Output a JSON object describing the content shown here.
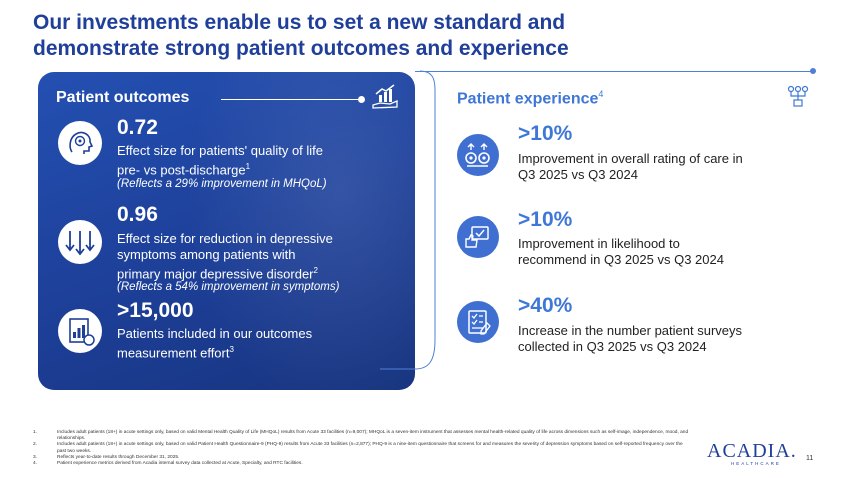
{
  "title": {
    "line1": "Our investments enable us to set a new standard and",
    "line2": "demonstrate strong patient outcomes and experience"
  },
  "patient_outcomes": {
    "heading": "Patient outcomes",
    "metrics": [
      {
        "value": "0.72",
        "desc_line1": "Effect size for patients' quality of life",
        "desc_line2": "pre- vs post-discharge",
        "sup": "1",
        "note": "(Reflects a 29% improvement in MHQoL)",
        "icon": "brain-head-icon"
      },
      {
        "value": "0.96",
        "desc_line1": "Effect size for reduction in depressive",
        "desc_line2": "symptoms among patients with",
        "desc_line3": "primary major depressive disorder",
        "sup": "2",
        "note": "(Reflects a 54% improvement in symptoms)",
        "icon": "down-arrows-icon"
      },
      {
        "value": ">15,000",
        "desc_line1": "Patients included in our outcomes",
        "desc_line2": "measurement effort",
        "sup": "3",
        "icon": "chart-document-icon"
      }
    ]
  },
  "patient_experience": {
    "heading": "Patient experience",
    "heading_sup": "4",
    "items": [
      {
        "value": ">10%",
        "desc_line1": "Improvement in overall rating of care in",
        "desc_line2": "Q3 2025 vs Q3 2024",
        "icon": "gears-icon"
      },
      {
        "value": ">10%",
        "desc_line1": "Improvement in likelihood to",
        "desc_line2": "recommend in Q3 2025 vs Q3 2024",
        "icon": "recommend-icon"
      },
      {
        "value": ">40%",
        "desc_line1": "Increase in the number patient surveys",
        "desc_line2": "collected in Q3 2025 vs Q3 2024",
        "icon": "survey-checklist-icon"
      }
    ]
  },
  "footnotes": [
    {
      "n": "1.",
      "text": "Includes adult patients (18+) in acute settings only, based on valid Mental Health Quality of Life (MHQoL) results from Acute 33 facilities (n=9,007); MHQoL is a seven-item instrument that assesses mental health-related quality of life across dimensions such as self-image, independence, mood, and relationships."
    },
    {
      "n": "2.",
      "text": "Includes adult patients (18+) in acute settings only, based on valid Patient Health Questionnaire-9 (PHQ-9) results from Acute 33 facilities (n=2,877); PHQ-9 is a nine-item questionnaire that screens for and measures the severity of depression symptoms based on self-reported frequency over the past two weeks."
    },
    {
      "n": "3.",
      "text": "Reflects year-to-date results through December 31, 2025."
    },
    {
      "n": "4.",
      "text": "Patient experience metrics derived from Acadia internal survey data collected at Acute, Specialty, and RTC facilities."
    }
  ],
  "logo": {
    "name": "ACADIA.",
    "sub": "HEALTHCARE"
  },
  "page_number": "11",
  "colors": {
    "primary": "#1f3f9a",
    "accent": "#3f77d6",
    "panel": "#1d3f98"
  }
}
